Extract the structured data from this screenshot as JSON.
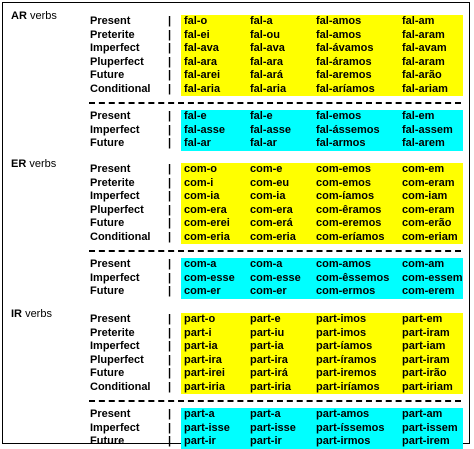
{
  "sections": [
    {
      "code": "AR",
      "suffix": "verbs",
      "indicative": [
        {
          "tense": "Present",
          "forms": [
            "fal-o",
            "fal-a",
            "fal-amos",
            "fal-am"
          ]
        },
        {
          "tense": "Preterite",
          "forms": [
            "fal-ei",
            "fal-ou",
            "fal-amos",
            "fal-aram"
          ]
        },
        {
          "tense": "Imperfect",
          "forms": [
            "fal-ava",
            "fal-ava",
            "fal-ávamos",
            "fal-avam"
          ]
        },
        {
          "tense": "Pluperfect",
          "forms": [
            "fal-ara",
            "fal-ara",
            "fal-áramos",
            "fal-aram"
          ]
        },
        {
          "tense": "Future",
          "forms": [
            "fal-arei",
            "fal-ará",
            "fal-aremos",
            "fal-arão"
          ]
        },
        {
          "tense": "Conditional",
          "forms": [
            "fal-aria",
            "fal-aria",
            "fal-aríamos",
            "fal-ariam"
          ]
        }
      ],
      "subjunctive": [
        {
          "tense": "Present",
          "forms": [
            "fal-e",
            "fal-e",
            "fal-emos",
            "fal-em"
          ]
        },
        {
          "tense": "Imperfect",
          "forms": [
            "fal-asse",
            "fal-asse",
            "fal-ássemos",
            "fal-assem"
          ]
        },
        {
          "tense": "Future",
          "forms": [
            "fal-ar",
            "fal-ar",
            "fal-armos",
            "fal-arem"
          ]
        }
      ]
    },
    {
      "code": "ER",
      "suffix": "verbs",
      "indicative": [
        {
          "tense": "Present",
          "forms": [
            "com-o",
            "com-e",
            "com-emos",
            "com-em"
          ]
        },
        {
          "tense": "Preterite",
          "forms": [
            "com-i",
            "com-eu",
            "com-emos",
            "com-eram"
          ]
        },
        {
          "tense": "Imperfect",
          "forms": [
            "com-ia",
            "com-ia",
            "com-íamos",
            "com-iam"
          ]
        },
        {
          "tense": "Pluperfect",
          "forms": [
            "com-era",
            "com-era",
            "com-êramos",
            "com-eram"
          ]
        },
        {
          "tense": "Future",
          "forms": [
            "com-erei",
            "com-erá",
            "com-eremos",
            "com-erão"
          ]
        },
        {
          "tense": "Conditional",
          "forms": [
            "com-eria",
            "com-eria",
            "com-eríamos",
            "com-eriam"
          ]
        }
      ],
      "subjunctive": [
        {
          "tense": "Present",
          "forms": [
            "com-a",
            "com-a",
            "com-amos",
            "com-am"
          ]
        },
        {
          "tense": "Imperfect",
          "forms": [
            "com-esse",
            "com-esse",
            "com-êssemos",
            "com-essem"
          ]
        },
        {
          "tense": "Future",
          "forms": [
            "com-er",
            "com-er",
            "com-ermos",
            "com-erem"
          ]
        }
      ]
    },
    {
      "code": "IR",
      "suffix": "verbs",
      "indicative": [
        {
          "tense": "Present",
          "forms": [
            "part-o",
            "part-e",
            "part-imos",
            "part-em"
          ]
        },
        {
          "tense": "Preterite",
          "forms": [
            "part-i",
            "part-iu",
            "part-imos",
            "part-iram"
          ]
        },
        {
          "tense": "Imperfect",
          "forms": [
            "part-ia",
            "part-ia",
            "part-íamos",
            "part-iam"
          ]
        },
        {
          "tense": "Pluperfect",
          "forms": [
            "part-ira",
            "part-ira",
            "part-íramos",
            "part-iram"
          ]
        },
        {
          "tense": "Future",
          "forms": [
            "part-irei",
            "part-irá",
            "part-iremos",
            "part-irão"
          ]
        },
        {
          "tense": "Conditional",
          "forms": [
            "part-iria",
            "part-iria",
            "part-iríamos",
            "part-iriam"
          ]
        }
      ],
      "subjunctive": [
        {
          "tense": "Present",
          "forms": [
            "part-a",
            "part-a",
            "part-amos",
            "part-am"
          ]
        },
        {
          "tense": "Imperfect",
          "forms": [
            "part-isse",
            "part-isse",
            "part-íssemos",
            "part-issem"
          ]
        },
        {
          "tense": "Future",
          "forms": [
            "part-ir",
            "part-ir",
            "part-irmos",
            "part-irem"
          ]
        }
      ]
    }
  ],
  "separator": "|",
  "colors": {
    "indicative": "#ffff00",
    "subjunctive": "#00ffff"
  }
}
